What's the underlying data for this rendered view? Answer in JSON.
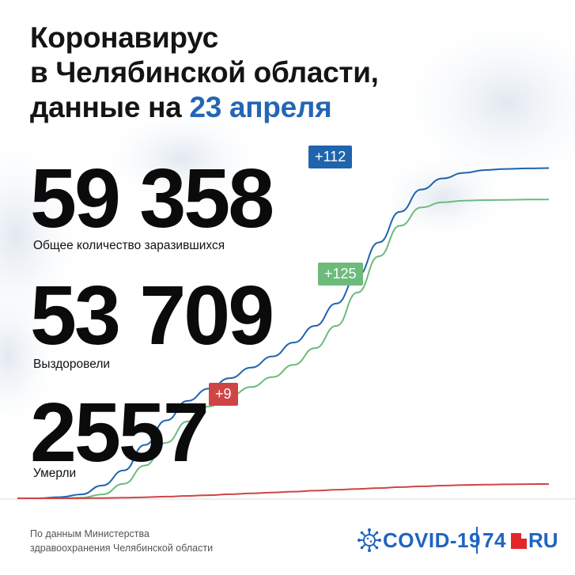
{
  "title": {
    "line1": "Коронавирус",
    "line2": "в Челябинской области,",
    "line3_prefix": "данные на",
    "line3_date": "23 апреля"
  },
  "stats": {
    "total": {
      "value": "59 358",
      "delta": "+112",
      "label": "Общее количество заразившихся",
      "color": "#1f64ad"
    },
    "recovered": {
      "value": "53 709",
      "delta": "+125",
      "label": "Выздоровели",
      "color": "#6cbb7b"
    },
    "deaths": {
      "value": "2557",
      "delta": "+9",
      "label": "Умерли",
      "color": "#cf4545"
    }
  },
  "footer": {
    "source_line1": "По данным Министерства",
    "source_line2": "здравоохранения Челябинской области"
  },
  "logo": {
    "covid_text": "COVID-19",
    "brand_number": "74",
    "brand_suffix": "RU",
    "icon": "coronavirus-icon"
  },
  "colors": {
    "accent_blue": "#2366b4",
    "logo_blue": "#1f64c0",
    "logo_red": "#e2262a"
  },
  "chart_data": {
    "type": "line",
    "title": "",
    "xlabel": "",
    "ylabel": "",
    "grid": false,
    "legend": "none",
    "x_range": [
      0,
      100
    ],
    "ylim": [
      0,
      60000
    ],
    "series": [
      {
        "color": "#1f64ad",
        "x": [
          0,
          4,
          8,
          12,
          16,
          20,
          24,
          28,
          32,
          36,
          40,
          44,
          48,
          52,
          56,
          60,
          64,
          68,
          72,
          76,
          80,
          84,
          88,
          92,
          96,
          100
        ],
        "values": [
          0,
          0,
          200,
          700,
          2300,
          5000,
          9600,
          14000,
          17500,
          19700,
          21600,
          23500,
          25500,
          28000,
          31000,
          35000,
          40000,
          46000,
          51500,
          55500,
          57500,
          58500,
          59000,
          59200,
          59300,
          59358
        ]
      },
      {
        "color": "#6cbb7b",
        "x": [
          0,
          4,
          8,
          12,
          16,
          20,
          24,
          28,
          32,
          36,
          40,
          44,
          48,
          52,
          56,
          60,
          64,
          68,
          72,
          76,
          80,
          84,
          88,
          92,
          96,
          100
        ],
        "values": [
          0,
          0,
          0,
          100,
          700,
          2600,
          5900,
          10000,
          13800,
          16500,
          18400,
          20000,
          21800,
          24000,
          27000,
          31000,
          37000,
          43500,
          49000,
          52300,
          53200,
          53500,
          53600,
          53650,
          53700,
          53709
        ]
      },
      {
        "color": "#cf4545",
        "x": [
          0,
          4,
          8,
          12,
          16,
          20,
          24,
          28,
          32,
          36,
          40,
          44,
          48,
          52,
          56,
          60,
          64,
          68,
          72,
          76,
          80,
          84,
          88,
          92,
          96,
          100
        ],
        "values": [
          0,
          0,
          0,
          10,
          40,
          100,
          180,
          300,
          420,
          560,
          720,
          880,
          1040,
          1200,
          1360,
          1520,
          1680,
          1840,
          2000,
          2150,
          2280,
          2380,
          2450,
          2500,
          2540,
          2557
        ]
      }
    ]
  }
}
